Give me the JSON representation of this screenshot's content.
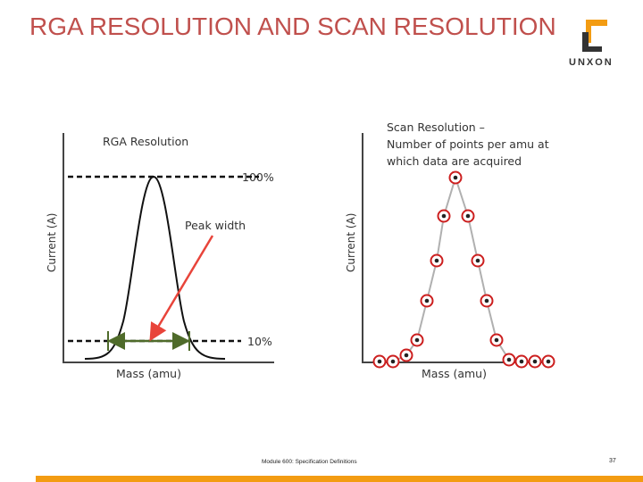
{
  "title": "RGA RESOLUTION AND SCAN RESOLUTION",
  "logo": {
    "text": "UNXON",
    "icon": "bracket-logo-icon"
  },
  "left_panel": {
    "heading": "RGA Resolution",
    "y_axis_label": "Current (A)",
    "x_axis_label": "Mass (amu)",
    "annotation": "Peak width"
  },
  "right_panel": {
    "caption_lines": [
      "Scan Resolution –",
      "Number of points per amu at",
      "which data are acquired"
    ],
    "y_axis_label": "Current (A)",
    "x_axis_label": "Mass (amu)"
  },
  "levels": {
    "top": "100%",
    "bottom": "10%"
  },
  "colors": {
    "title": "#c0504d",
    "arrow": "#e8443a",
    "width_arrow": "#4f6b2a",
    "points": "#cc1f1f",
    "footer_bar": "#f39c12"
  },
  "footer": {
    "text": "Module 600: Specification Definitions",
    "page": "37"
  }
}
